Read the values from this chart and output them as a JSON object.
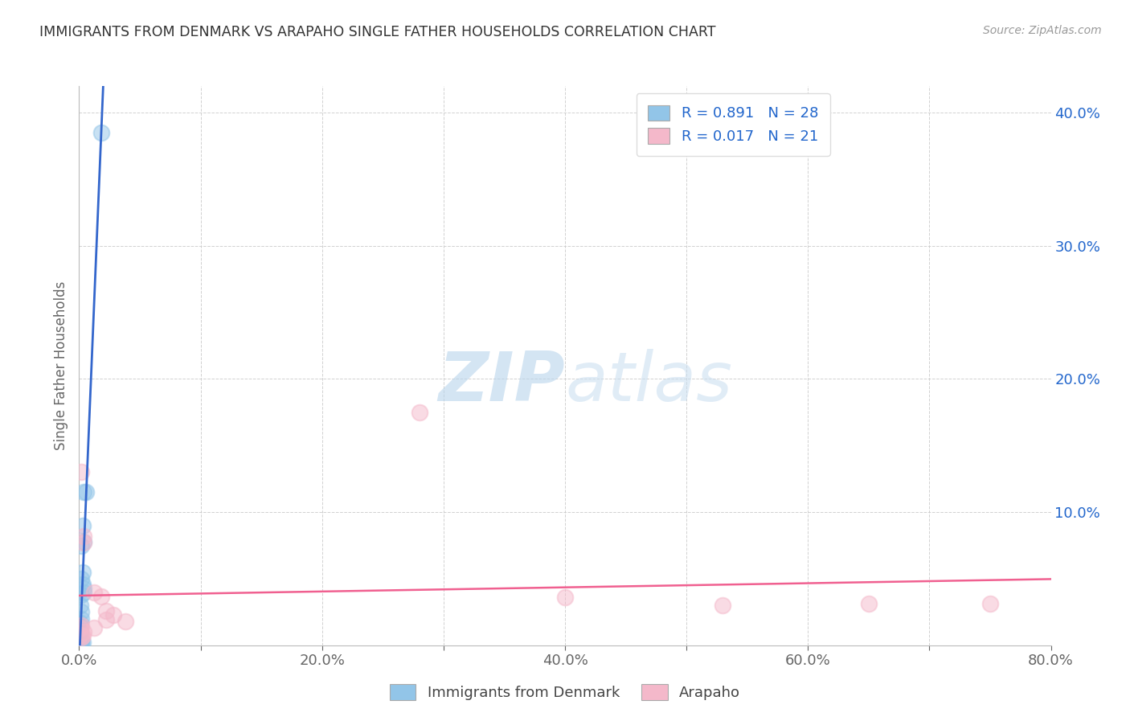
{
  "title": "IMMIGRANTS FROM DENMARK VS ARAPAHO SINGLE FATHER HOUSEHOLDS CORRELATION CHART",
  "source": "Source: ZipAtlas.com",
  "ylabel": "Single Father Households",
  "watermark_zip": "ZIP",
  "watermark_atlas": "atlas",
  "xlim": [
    0.0,
    0.8
  ],
  "ylim": [
    0.0,
    0.42
  ],
  "xtick_vals": [
    0.0,
    0.1,
    0.2,
    0.3,
    0.4,
    0.5,
    0.6,
    0.7,
    0.8
  ],
  "xtick_labels": [
    "0.0%",
    "",
    "20.0%",
    "",
    "40.0%",
    "",
    "60.0%",
    "",
    "80.0%"
  ],
  "ytick_vals": [
    0.0,
    0.1,
    0.2,
    0.3,
    0.4
  ],
  "ytick_labels_right": [
    "",
    "10.0%",
    "20.0%",
    "30.0%",
    "40.0%"
  ],
  "blue_color": "#92c5e8",
  "pink_color": "#f4b8ca",
  "blue_line_color": "#3366cc",
  "pink_line_color": "#f06090",
  "blue_scatter": [
    [
      0.018,
      0.385
    ],
    [
      0.004,
      0.115
    ],
    [
      0.006,
      0.115
    ],
    [
      0.003,
      0.09
    ],
    [
      0.004,
      0.078
    ],
    [
      0.002,
      0.075
    ],
    [
      0.003,
      0.055
    ],
    [
      0.002,
      0.05
    ],
    [
      0.003,
      0.046
    ],
    [
      0.004,
      0.043
    ],
    [
      0.004,
      0.04
    ],
    [
      0.002,
      0.038
    ],
    [
      0.001,
      0.03
    ],
    [
      0.002,
      0.025
    ],
    [
      0.002,
      0.02
    ],
    [
      0.001,
      0.017
    ],
    [
      0.001,
      0.014
    ],
    [
      0.001,
      0.011
    ],
    [
      0.001,
      0.009
    ],
    [
      0.001,
      0.007
    ],
    [
      0.001,
      0.006
    ],
    [
      0.001,
      0.004
    ],
    [
      0.001,
      0.003
    ],
    [
      0.002,
      0.003
    ],
    [
      0.003,
      0.002
    ],
    [
      0.001,
      0.002
    ],
    [
      0.002,
      0.001
    ],
    [
      0.001,
      0.001
    ]
  ],
  "pink_scatter": [
    [
      0.002,
      0.13
    ],
    [
      0.004,
      0.082
    ],
    [
      0.004,
      0.077
    ],
    [
      0.28,
      0.175
    ],
    [
      0.012,
      0.04
    ],
    [
      0.018,
      0.037
    ],
    [
      0.022,
      0.026
    ],
    [
      0.028,
      0.023
    ],
    [
      0.022,
      0.019
    ],
    [
      0.038,
      0.018
    ],
    [
      0.002,
      0.015
    ],
    [
      0.012,
      0.013
    ],
    [
      0.001,
      0.013
    ],
    [
      0.004,
      0.01
    ],
    [
      0.001,
      0.008
    ],
    [
      0.003,
      0.007
    ],
    [
      0.002,
      0.006
    ],
    [
      0.4,
      0.036
    ],
    [
      0.53,
      0.03
    ],
    [
      0.65,
      0.031
    ],
    [
      0.75,
      0.031
    ]
  ],
  "background_color": "#ffffff",
  "grid_color": "#cccccc",
  "title_color": "#333333",
  "axis_color": "#2266cc",
  "ylabel_color": "#666666"
}
